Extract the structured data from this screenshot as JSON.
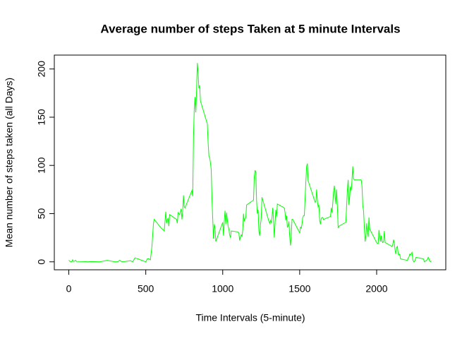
{
  "chart_data": {
    "type": "line",
    "title": "Average number of steps Taken at 5 minute Intervals",
    "xlabel": "Time Intervals (5-minute)",
    "ylabel": "Mean number of steps taken (all Days)",
    "x": [
      0,
      10,
      20,
      25,
      30,
      45,
      50,
      100,
      110,
      115,
      120,
      150,
      200,
      250,
      300,
      320,
      330,
      340,
      350,
      400,
      415,
      430,
      440,
      450,
      500,
      505,
      510,
      520,
      530,
      540,
      550,
      555,
      600,
      620,
      630,
      635,
      640,
      645,
      650,
      655,
      700,
      705,
      710,
      720,
      730,
      735,
      740,
      745,
      750,
      755,
      800,
      805,
      810,
      815,
      820,
      825,
      830,
      835,
      840,
      845,
      850,
      855,
      900,
      905,
      910,
      915,
      920,
      925,
      930,
      935,
      940,
      945,
      950,
      955,
      1000,
      1005,
      1010,
      1015,
      1020,
      1025,
      1030,
      1035,
      1040,
      1045,
      1050,
      1055,
      1100,
      1105,
      1110,
      1115,
      1120,
      1125,
      1130,
      1135,
      1140,
      1145,
      1150,
      1155,
      1200,
      1205,
      1210,
      1215,
      1220,
      1225,
      1230,
      1235,
      1240,
      1245,
      1250,
      1255,
      1300,
      1305,
      1310,
      1315,
      1320,
      1325,
      1330,
      1335,
      1340,
      1345,
      1350,
      1355,
      1400,
      1405,
      1410,
      1415,
      1420,
      1425,
      1430,
      1435,
      1440,
      1445,
      1450,
      1455,
      1500,
      1505,
      1510,
      1515,
      1520,
      1525,
      1530,
      1535,
      1540,
      1545,
      1550,
      1555,
      1600,
      1605,
      1610,
      1615,
      1620,
      1625,
      1630,
      1635,
      1640,
      1645,
      1650,
      1655,
      1700,
      1705,
      1710,
      1715,
      1720,
      1725,
      1730,
      1735,
      1740,
      1745,
      1750,
      1755,
      1800,
      1805,
      1810,
      1815,
      1820,
      1825,
      1830,
      1835,
      1840,
      1845,
      1850,
      1855,
      1900,
      1905,
      1910,
      1915,
      1920,
      1925,
      1930,
      1935,
      1940,
      1945,
      1950,
      1955,
      2000,
      2005,
      2010,
      2015,
      2020,
      2025,
      2030,
      2035,
      2040,
      2045,
      2050,
      2055,
      2100,
      2105,
      2110,
      2115,
      2120,
      2125,
      2130,
      2135,
      2140,
      2145,
      2150,
      2155,
      2200,
      2205,
      2210,
      2215,
      2220,
      2225,
      2230,
      2235,
      2240,
      2245,
      2250,
      2255,
      2300,
      2305,
      2310,
      2315,
      2320,
      2325,
      2330,
      2335,
      2340,
      2345,
      2350,
      2355
    ],
    "series": [
      {
        "color": "#00ff00",
        "values": [
          1.7,
          0.1,
          0.1,
          2.1,
          0.5,
          1.5,
          0.4,
          0.3,
          0.2,
          0.3,
          0,
          0.3,
          0,
          1.5,
          0,
          0.2,
          1.6,
          0.5,
          0,
          1.2,
          0,
          4.1,
          3.5,
          3,
          0,
          1.5,
          3,
          3.2,
          2,
          16,
          40,
          44,
          35,
          32,
          52,
          40,
          44,
          45,
          37,
          49,
          44,
          40,
          51,
          49,
          55,
          44,
          52,
          69,
          57,
          56,
          74,
          68,
          129,
          158,
          171,
          155,
          177,
          206.2,
          196,
          180,
          183,
          167,
          143,
          124,
          110,
          108,
          103,
          96,
          66,
          45,
          24,
          39,
          35,
          21,
          41,
          27,
          42,
          53,
          39,
          51,
          44,
          37,
          34,
          28,
          25,
          32,
          31,
          30,
          22,
          26,
          28,
          26,
          33,
          50,
          42,
          45,
          46,
          59,
          64,
          88,
          95,
          93,
          63,
          50,
          54,
          32,
          27,
          38,
          45,
          67,
          42,
          40,
          43,
          41,
          46,
          56,
          43,
          25,
          40,
          54,
          47,
          60,
          56,
          51,
          43,
          48,
          36,
          37,
          42,
          27,
          17,
          26,
          44,
          44,
          30,
          36,
          35,
          39,
          46,
          48,
          48,
          65,
          83,
          99,
          102,
          84,
          62,
          62,
          75,
          63,
          57,
          59,
          43,
          39,
          45,
          46,
          46,
          44,
          47,
          56,
          51,
          61,
          73,
          79,
          69,
          60,
          75,
          57,
          35,
          37,
          41,
          58,
          75,
          85,
          59,
          68,
          78,
          74,
          85,
          99,
          86,
          85,
          85,
          78,
          58,
          53,
          36,
          21,
          27,
          40,
          30,
          26,
          46,
          34,
          20,
          19,
          19,
          33,
          27,
          21,
          27,
          21,
          20,
          21,
          32,
          20,
          16,
          18,
          23,
          19,
          12,
          8,
          15,
          16,
          8,
          7,
          8,
          3,
          1.5,
          4,
          5,
          8,
          7,
          8.7,
          9.8,
          2.2,
          0.3,
          0.1,
          1.6,
          4.6,
          3.3,
          2.8,
          0,
          0.8,
          1,
          1.6,
          2.6,
          4.7,
          3.3,
          0.6,
          0.2,
          1.1
        ]
      }
    ],
    "xlim": [
      -94.2,
      2449.2
    ],
    "ylim": [
      -8.25,
      214.42
    ],
    "xticks": [
      0,
      500,
      1000,
      1500,
      2000
    ],
    "yticks": [
      0,
      50,
      100,
      150,
      200
    ]
  }
}
